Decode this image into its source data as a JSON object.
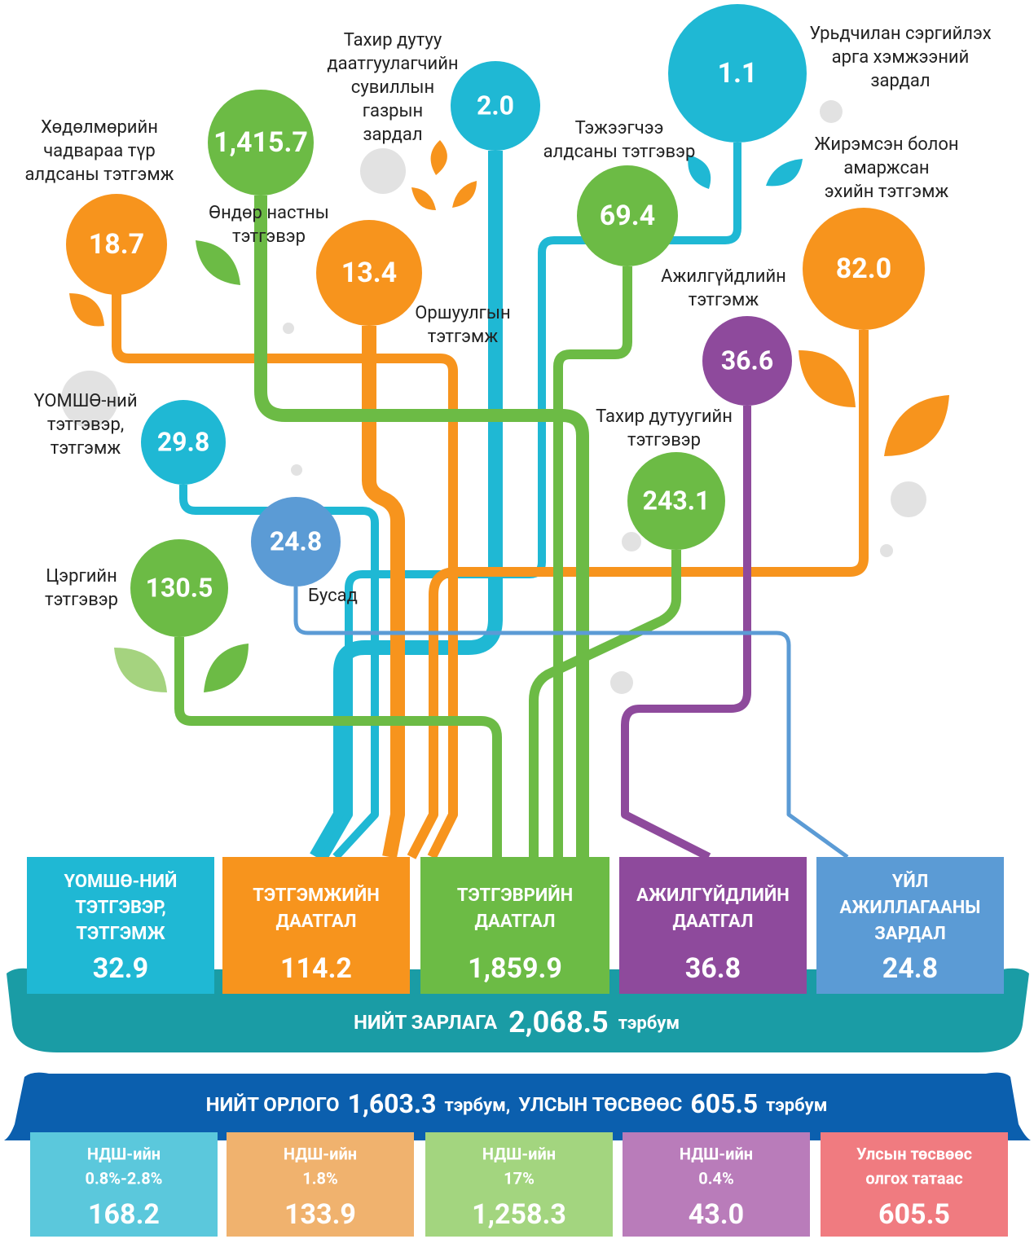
{
  "nodes": [
    {
      "value": "18.7",
      "label": [
        "Хөдөлмөрийн",
        "чадвараа түр",
        "алдсаны тэтгэмж"
      ]
    },
    {
      "value": "1,415.7",
      "label": [
        "Өндөр настны",
        "тэтгэвэр"
      ]
    },
    {
      "value": "2.0",
      "label": [
        "Тахир дутуу",
        "даатгуулагчийн",
        "сувиллын",
        "газрын",
        "зардал"
      ]
    },
    {
      "value": "13.4",
      "label": [
        "Оршуулгын",
        "тэтгэмж"
      ]
    },
    {
      "value": "69.4",
      "label": [
        "Тэжээгчээ",
        "алдсаны тэтгэвэр"
      ]
    },
    {
      "value": "1.1",
      "label": [
        "Урьдчилан сэргийлэх",
        "арга хэмжээний",
        "зардал"
      ]
    },
    {
      "value": "82.0",
      "label": [
        "Жирэмсэн болон",
        "амаржсан",
        "эхийн тэтгэмж"
      ]
    },
    {
      "value": "36.6",
      "label": [
        "Ажилгүйдлийн",
        "тэтгэмж"
      ]
    },
    {
      "value": "243.1",
      "label": [
        "Тахир дутуугийн",
        "тэтгэвэр"
      ]
    },
    {
      "value": "29.8",
      "label": [
        "ҮОМШӨ-ний",
        "тэтгэвэр,",
        "тэтгэмж"
      ]
    },
    {
      "value": "24.8",
      "label": [
        "Бусад"
      ]
    },
    {
      "value": "130.5",
      "label": [
        "Цэргийн",
        "тэтгэвэр"
      ]
    }
  ],
  "funds": [
    {
      "title": [
        "ҮОМШӨ-НИЙ",
        "ТЭТГЭВЭР,",
        "ТЭТГЭМЖ"
      ],
      "value": "32.9"
    },
    {
      "title": [
        "ТЭТГЭМЖИЙН",
        "ДААТГАЛ"
      ],
      "value": "114.2"
    },
    {
      "title": [
        "ТЭТГЭВРИЙН",
        "ДААТГАЛ"
      ],
      "value": "1,859.9"
    },
    {
      "title": [
        "АЖИЛГҮЙДЛИЙН",
        "ДААТГАЛ"
      ],
      "value": "36.8"
    },
    {
      "title": [
        "ҮЙЛ",
        "АЖИЛЛАГААНЫ",
        "ЗАРДАЛ"
      ],
      "value": "24.8"
    }
  ],
  "expense": {
    "label": "НИЙТ ЗАРЛАГА",
    "value": "2,068.5",
    "unit": "тэрбум"
  },
  "income": {
    "label": "НИЙТ ОРЛОГО",
    "value": "1,603.3",
    "unit": "тэрбум,",
    "budget_label": "УЛСЫН ТӨСВӨӨС",
    "budget_value": "605.5",
    "budget_unit": "тэрбум"
  },
  "sources": [
    {
      "label": [
        "НДШ-ийн",
        "0.8%-2.8%"
      ],
      "value": "168.2"
    },
    {
      "label": [
        "НДШ-ийн",
        "1.8%"
      ],
      "value": "133.9"
    },
    {
      "label": [
        "НДШ-ийн",
        "17%"
      ],
      "value": "1,258.3"
    },
    {
      "label": [
        "НДШ-ийн",
        "0.4%"
      ],
      "value": "43.0"
    },
    {
      "label": [
        "Улсын төсвөөс",
        "олгох татаас"
      ],
      "value": "605.5"
    }
  ]
}
